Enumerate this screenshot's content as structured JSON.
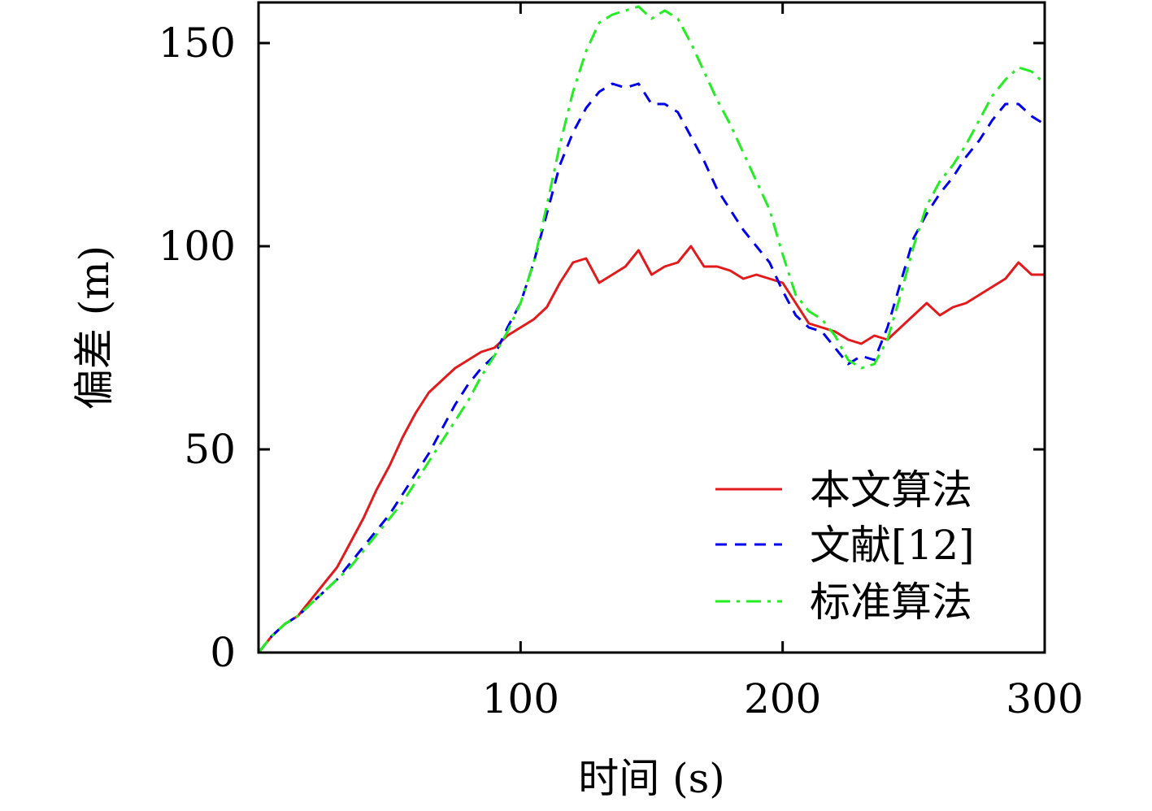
{
  "chart_data": {
    "type": "line",
    "xlabel": "时间 (s)",
    "ylabel": "偏差 (m)",
    "xlim": [
      0,
      300
    ],
    "ylim": [
      0,
      160
    ],
    "xticks": [
      100,
      200,
      300
    ],
    "yticks": [
      0,
      50,
      100,
      150
    ],
    "xtick_labels": [
      "100",
      "200",
      "300"
    ],
    "ytick_labels": [
      "0",
      "50",
      "100",
      "150"
    ],
    "grid": false,
    "legend_position": "bottom-right",
    "series": [
      {
        "name": "本文算法",
        "color": "#e31a1c",
        "dash": "solid",
        "x": [
          0,
          5,
          10,
          15,
          20,
          25,
          30,
          35,
          40,
          45,
          50,
          55,
          60,
          65,
          70,
          75,
          80,
          85,
          90,
          95,
          100,
          105,
          110,
          115,
          120,
          125,
          130,
          135,
          140,
          145,
          150,
          155,
          160,
          165,
          170,
          175,
          180,
          185,
          190,
          195,
          200,
          205,
          210,
          215,
          220,
          225,
          230,
          235,
          240,
          245,
          250,
          255,
          260,
          265,
          270,
          275,
          280,
          285,
          290,
          295,
          300
        ],
        "y": [
          0,
          4,
          7,
          9,
          13,
          17,
          21,
          27,
          33,
          40,
          46,
          53,
          59,
          64,
          67,
          70,
          72,
          74,
          75,
          78,
          80,
          82,
          85,
          91,
          96,
          97,
          91,
          93,
          95,
          99,
          93,
          95,
          96,
          100,
          95,
          95,
          94,
          92,
          93,
          92,
          91,
          86,
          81,
          80,
          79,
          77,
          76,
          78,
          77,
          80,
          83,
          86,
          83,
          85,
          86,
          88,
          90,
          92,
          96,
          93,
          93
        ]
      },
      {
        "name": "文献[12]",
        "color": "#0000ee",
        "dash": "dashed",
        "x": [
          0,
          5,
          10,
          15,
          20,
          25,
          30,
          35,
          40,
          45,
          50,
          55,
          60,
          65,
          70,
          75,
          80,
          85,
          90,
          95,
          100,
          105,
          110,
          115,
          120,
          125,
          130,
          135,
          140,
          145,
          150,
          155,
          160,
          165,
          170,
          175,
          180,
          185,
          190,
          195,
          200,
          205,
          210,
          215,
          220,
          225,
          230,
          235,
          240,
          245,
          250,
          255,
          260,
          265,
          270,
          275,
          280,
          285,
          290,
          295,
          300
        ],
        "y": [
          0,
          4,
          7,
          9,
          12,
          15,
          18,
          22,
          26,
          30,
          34,
          39,
          44,
          49,
          55,
          61,
          66,
          70,
          73,
          80,
          86,
          96,
          108,
          120,
          128,
          134,
          138,
          140,
          139,
          140,
          135,
          135,
          133,
          127,
          121,
          114,
          109,
          104,
          100,
          96,
          89,
          83,
          80,
          79,
          75,
          71,
          73,
          72,
          80,
          91,
          102,
          108,
          113,
          117,
          122,
          126,
          131,
          135,
          135,
          132,
          130
        ]
      },
      {
        "name": "标准算法",
        "color": "#22ee22",
        "dash": "dashdot",
        "x": [
          0,
          5,
          10,
          15,
          20,
          25,
          30,
          35,
          40,
          45,
          50,
          55,
          60,
          65,
          70,
          75,
          80,
          85,
          90,
          95,
          100,
          105,
          110,
          115,
          120,
          125,
          130,
          135,
          140,
          145,
          150,
          155,
          160,
          165,
          170,
          175,
          180,
          185,
          190,
          195,
          200,
          205,
          210,
          215,
          220,
          225,
          230,
          235,
          240,
          245,
          250,
          255,
          260,
          265,
          270,
          275,
          280,
          285,
          290,
          295,
          300
        ],
        "y": [
          0,
          4,
          7,
          9,
          12,
          15,
          18,
          21,
          25,
          29,
          33,
          37,
          42,
          47,
          52,
          57,
          62,
          68,
          73,
          79,
          86,
          96,
          110,
          125,
          138,
          148,
          155,
          157,
          158,
          159,
          156,
          158,
          156,
          150,
          143,
          136,
          130,
          123,
          116,
          109,
          98,
          88,
          84,
          82,
          78,
          72,
          70,
          71,
          77,
          88,
          100,
          110,
          116,
          120,
          125,
          131,
          137,
          141,
          144,
          143,
          140
        ]
      }
    ]
  }
}
